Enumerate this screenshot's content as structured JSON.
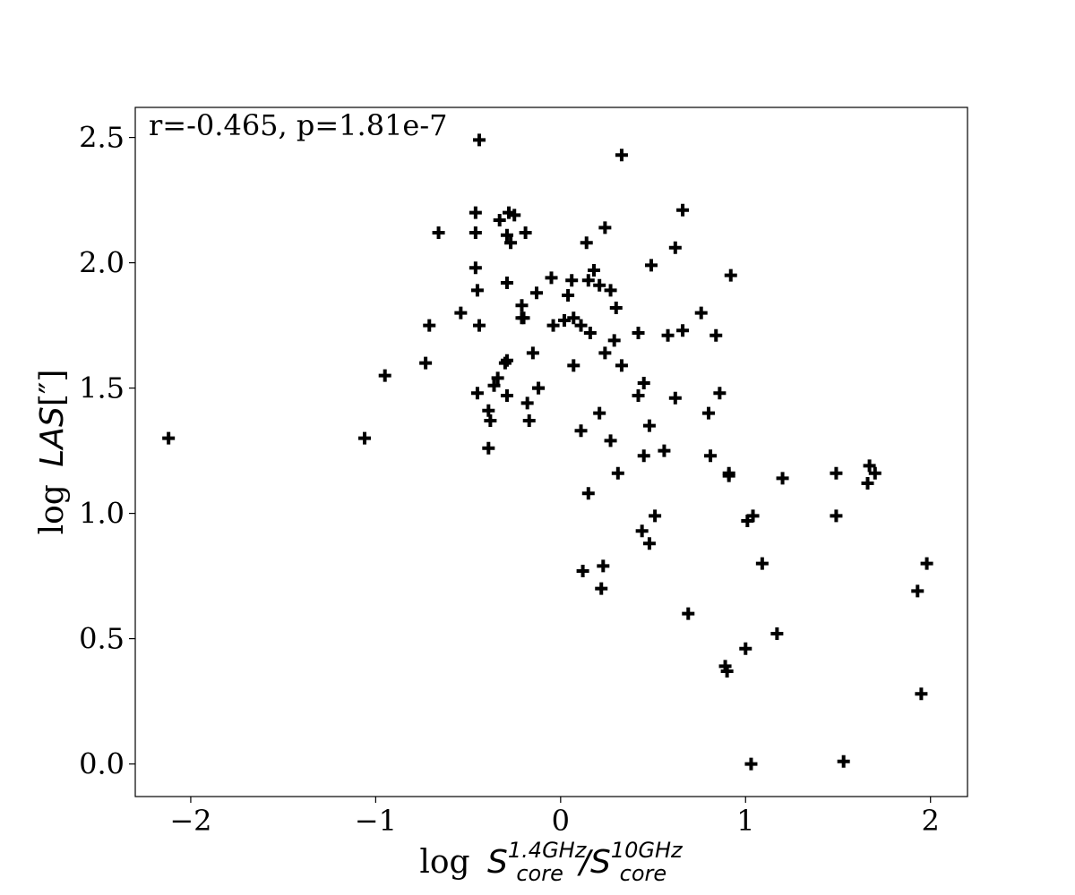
{
  "chart_data": {
    "type": "scatter",
    "annotation": "r=-0.465, p=1.81e-7",
    "xlabel": {
      "prefix": "log",
      "symbol": "S",
      "num_sup": "1.4GHz",
      "num_sub": "core",
      "slash": "/",
      "den_sup": "10GHz",
      "den_sub": "core"
    },
    "ylabel": {
      "prefix": "log",
      "symbol": "LAS",
      "unit": "[″]"
    },
    "xlim": [
      -2.3,
      2.2
    ],
    "ylim": [
      -0.13,
      2.62
    ],
    "xticks": [
      -2,
      -1,
      0,
      1,
      2
    ],
    "xtick_labels": [
      "−2",
      "−1",
      "0",
      "1",
      "2"
    ],
    "yticks": [
      0.0,
      0.5,
      1.0,
      1.5,
      2.0,
      2.5
    ],
    "ytick_labels": [
      "0.0",
      "0.5",
      "1.0",
      "1.5",
      "2.0",
      "2.5"
    ],
    "grid": false,
    "marker": "plus",
    "marker_color": "#000000",
    "points": [
      [
        -2.12,
        1.3
      ],
      [
        -1.06,
        1.3
      ],
      [
        -0.95,
        1.55
      ],
      [
        -0.73,
        1.6
      ],
      [
        -0.71,
        1.75
      ],
      [
        -0.66,
        2.12
      ],
      [
        -0.54,
        1.8
      ],
      [
        -0.46,
        2.2
      ],
      [
        -0.46,
        2.12
      ],
      [
        -0.46,
        1.98
      ],
      [
        -0.45,
        1.89
      ],
      [
        -0.44,
        1.75
      ],
      [
        -0.45,
        1.48
      ],
      [
        -0.44,
        2.49
      ],
      [
        -0.39,
        1.41
      ],
      [
        -0.38,
        1.37
      ],
      [
        -0.39,
        1.26
      ],
      [
        -0.36,
        1.51
      ],
      [
        -0.34,
        1.54
      ],
      [
        -0.3,
        1.6
      ],
      [
        -0.29,
        1.61
      ],
      [
        -0.29,
        1.47
      ],
      [
        -0.29,
        1.92
      ],
      [
        -0.33,
        2.17
      ],
      [
        -0.28,
        2.2
      ],
      [
        -0.25,
        2.19
      ],
      [
        -0.29,
        2.11
      ],
      [
        -0.27,
        2.08
      ],
      [
        -0.21,
        1.83
      ],
      [
        -0.21,
        1.78
      ],
      [
        -0.2,
        1.78
      ],
      [
        -0.18,
        1.44
      ],
      [
        -0.17,
        1.37
      ],
      [
        -0.15,
        1.64
      ],
      [
        -0.12,
        1.5
      ],
      [
        -0.12,
        1.5
      ],
      [
        -0.13,
        1.88
      ],
      [
        -0.19,
        2.12
      ],
      [
        -0.05,
        1.94
      ],
      [
        -0.04,
        1.75
      ],
      [
        0.02,
        1.77
      ],
      [
        0.04,
        1.87
      ],
      [
        0.06,
        1.93
      ],
      [
        0.07,
        1.78
      ],
      [
        0.07,
        1.59
      ],
      [
        0.11,
        1.75
      ],
      [
        0.11,
        1.33
      ],
      [
        0.12,
        0.77
      ],
      [
        0.14,
        2.08
      ],
      [
        0.15,
        1.93
      ],
      [
        0.16,
        1.72
      ],
      [
        0.15,
        1.08
      ],
      [
        0.18,
        1.97
      ],
      [
        0.21,
        1.91
      ],
      [
        0.21,
        1.4
      ],
      [
        0.22,
        0.7
      ],
      [
        0.23,
        0.79
      ],
      [
        0.24,
        1.64
      ],
      [
        0.24,
        2.14
      ],
      [
        0.27,
        1.89
      ],
      [
        0.27,
        1.29
      ],
      [
        0.29,
        1.69
      ],
      [
        0.3,
        1.82
      ],
      [
        0.31,
        1.16
      ],
      [
        0.33,
        1.59
      ],
      [
        0.33,
        2.43
      ],
      [
        0.42,
        1.47
      ],
      [
        0.42,
        1.72
      ],
      [
        0.44,
        0.93
      ],
      [
        0.45,
        1.23
      ],
      [
        0.45,
        1.52
      ],
      [
        0.48,
        1.35
      ],
      [
        0.48,
        0.88
      ],
      [
        0.49,
        1.99
      ],
      [
        0.51,
        0.99
      ],
      [
        0.56,
        1.25
      ],
      [
        0.58,
        1.71
      ],
      [
        0.62,
        2.06
      ],
      [
        0.62,
        1.46
      ],
      [
        0.66,
        1.73
      ],
      [
        0.66,
        2.21
      ],
      [
        0.69,
        0.6
      ],
      [
        0.76,
        1.8
      ],
      [
        0.8,
        1.4
      ],
      [
        0.81,
        1.23
      ],
      [
        0.84,
        1.71
      ],
      [
        0.86,
        1.48
      ],
      [
        0.89,
        0.39
      ],
      [
        0.9,
        0.37
      ],
      [
        0.91,
        1.15
      ],
      [
        0.91,
        1.16
      ],
      [
        0.92,
        1.95
      ],
      [
        1.0,
        0.46
      ],
      [
        1.01,
        0.97
      ],
      [
        1.03,
        0.0
      ],
      [
        1.04,
        0.99
      ],
      [
        1.09,
        0.8
      ],
      [
        1.17,
        0.52
      ],
      [
        1.2,
        1.14
      ],
      [
        1.49,
        1.16
      ],
      [
        1.49,
        0.99
      ],
      [
        1.53,
        0.01
      ],
      [
        1.66,
        1.12
      ],
      [
        1.67,
        1.19
      ],
      [
        1.7,
        1.16
      ],
      [
        1.93,
        0.69
      ],
      [
        1.95,
        0.28
      ],
      [
        1.98,
        0.8
      ]
    ]
  }
}
